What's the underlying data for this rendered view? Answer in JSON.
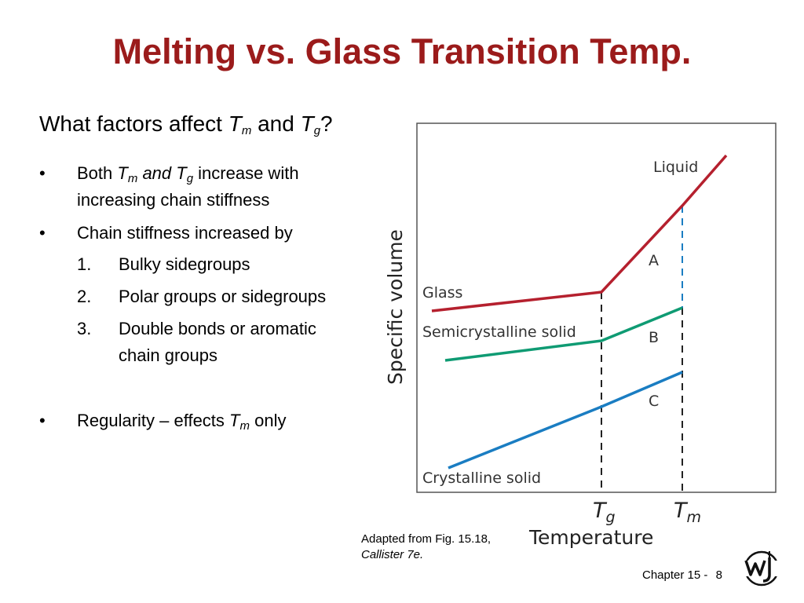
{
  "slide": {
    "title": "Melting vs. Glass Transition Temp.",
    "question": {
      "prefix": "What factors affect ",
      "tm_main": "T",
      "tm_sub": "m",
      "middle": " and ",
      "tg_main": "T",
      "tg_sub": "g",
      "suffix": "?"
    },
    "bullets": {
      "b1": {
        "marker": "•",
        "pre": "Both ",
        "tm_main": "T",
        "tm_sub": "m",
        "mid": " and T",
        "tg_sub": "g",
        "post": " increase with",
        "line2": "increasing chain stiffness"
      },
      "b2": {
        "marker": "•",
        "text": "Chain stiffness increased by"
      },
      "sub": [
        {
          "num": "1.",
          "text": "Bulky sidegroups"
        },
        {
          "num": "2.",
          "text": "Polar groups or sidegroups"
        },
        {
          "num": "3.",
          "text": "Double bonds or aromatic",
          "line2": "chain groups"
        }
      ],
      "b3": {
        "marker": "•",
        "pre": "Regularity – effects ",
        "tm_main": "T",
        "tm_sub": "m",
        "post": " only"
      }
    },
    "caption": {
      "line1": "Adapted from Fig. 15.18,",
      "line2": "Callister 7e."
    },
    "footer": {
      "chapter": "Chapter 15 -",
      "page": "8"
    }
  },
  "diagram": {
    "ylabel": "Specific volume",
    "xlabel": "Temperature",
    "tick_tg_main": "T",
    "tick_tg_sub": "g",
    "tick_tm_main": "T",
    "tick_tm_sub": "m",
    "labels": {
      "liquid": "Liquid",
      "glass": "Glass",
      "semicrystalline": "Semicrystalline solid",
      "crystalline": "Crystalline solid",
      "a": "A",
      "b": "B",
      "c": "C"
    },
    "colors": {
      "glass_line": "#b5202e",
      "semi_line": "#0f9b73",
      "crys_line": "#1a7dc2",
      "dashed_tm": "#1a7dc2"
    }
  }
}
